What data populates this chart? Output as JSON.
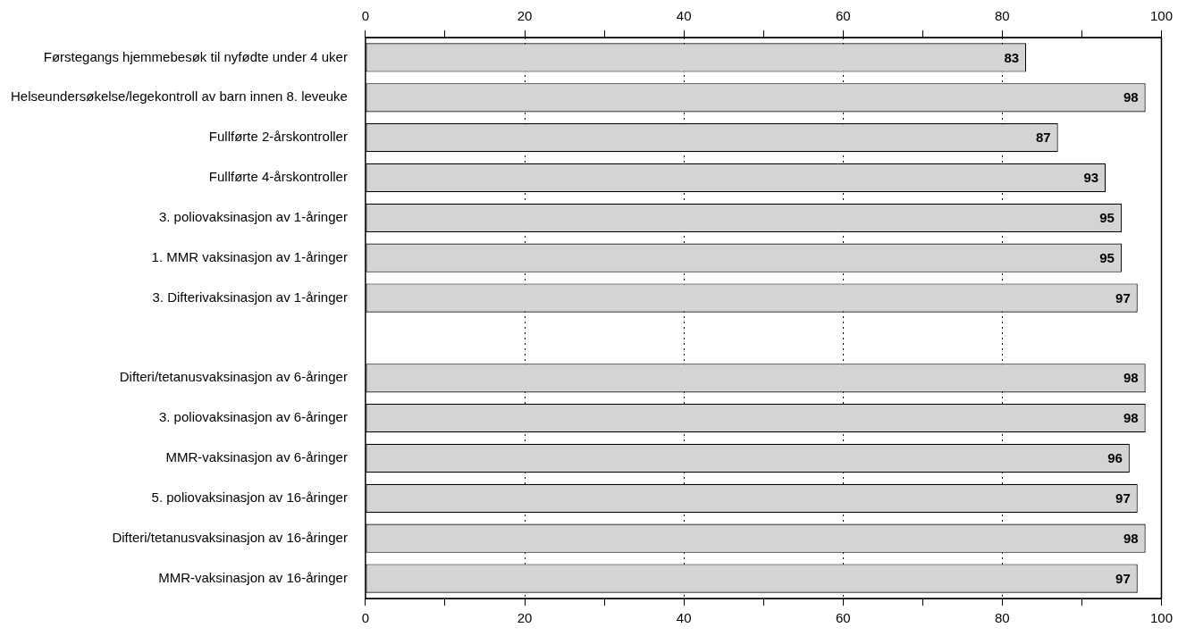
{
  "chart_data": {
    "type": "bar",
    "orientation": "horizontal",
    "categories": [
      "Førstegangs hjemmebesøk til nyfødte under 4 uker",
      "Helseundersøkelse/legekontroll av barn innen 8. leveuke",
      "Fullførte 2-årskontroller",
      "Fullførte 4-årskontroller",
      "3. poliovaksinasjon av 1-åringer",
      "1. MMR vaksinasjon av 1-åringer",
      "3. Difterivaksinasjon av 1-åringer",
      null,
      "Difteri/tetanusvaksinasjon av 6-åringer",
      "3. poliovaksinasjon av 6-åringer",
      "MMR-vaksinasjon av 6-åringer",
      "5. poliovaksinasjon av 16-åringer",
      "Difteri/tetanusvaksinasjon av 16-åringer",
      "MMR-vaksinasjon av 16-åringer"
    ],
    "values": [
      83,
      98,
      87,
      93,
      95,
      95,
      97,
      null,
      98,
      98,
      96,
      97,
      98,
      97
    ],
    "color": "#d4d4d4",
    "xlim": [
      0,
      100
    ],
    "xticks": [
      0,
      {
        "value": 10,
        "label": null
      },
      20,
      {
        "value": 30,
        "label": null
      },
      40,
      {
        "value": 50,
        "label": null
      },
      60,
      {
        "value": 70,
        "label": null
      },
      80,
      {
        "value": 90,
        "label": null
      },
      100
    ],
    "x2lim": [
      0,
      100
    ],
    "x2ticks": [
      0,
      {
        "value": 10,
        "label": null
      },
      20,
      {
        "value": 30,
        "label": null
      },
      40,
      {
        "value": 50,
        "label": null
      },
      60,
      {
        "value": 70,
        "label": null
      },
      80,
      {
        "value": 90,
        "label": null
      },
      100
    ],
    "grid": "x",
    "data_labels": true
  }
}
